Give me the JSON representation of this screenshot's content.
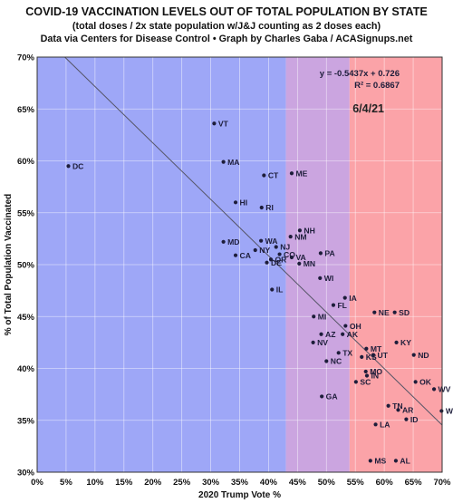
{
  "title": "COVID-19 VACCINATION LEVELS OUT OF TOTAL POPULATION BY STATE",
  "subtitle": "(total doses / 2x state population w/J&J counting as 2 doses each)",
  "credit": "Data via Centers for Disease Control • Graph by Charles Gaba / ACASignups.net",
  "colors": {
    "blue_region": "#9ea7f7",
    "purple_region": "#cba5e0",
    "red_region": "#fba3a8",
    "point": "#1d1d3a",
    "trendline": "#555566"
  },
  "chart_data": {
    "type": "scatter",
    "xlabel": "2020 Trump Vote %",
    "ylabel": "% of Total Population Vaccinated",
    "xlim": [
      0.0,
      0.7
    ],
    "ylim": [
      0.3,
      0.7
    ],
    "x_ticks": [
      "0%",
      "5%",
      "10%",
      "15%",
      "20%",
      "25%",
      "30%",
      "35%",
      "40%",
      "45%",
      "50%",
      "55%",
      "60%",
      "65%",
      "70%"
    ],
    "y_ticks": [
      "30%",
      "35%",
      "40%",
      "45%",
      "50%",
      "55%",
      "60%",
      "65%",
      "70%"
    ],
    "grid": true,
    "bands": [
      {
        "from": 0.0,
        "to": 0.43,
        "color": "#9ea7f7"
      },
      {
        "from": 0.43,
        "to": 0.54,
        "color": "#cba5e0"
      },
      {
        "from": 0.54,
        "to": 0.7,
        "color": "#fba3a8"
      }
    ],
    "trendline": {
      "slope": -0.5437,
      "intercept": 0.726
    },
    "equation": "y = -0.5437x + 0.726",
    "r_squared": "R² = 0.6867",
    "date": "6/4/21",
    "points": [
      {
        "label": "DC",
        "x": 0.054,
        "y": 0.595
      },
      {
        "label": "VT",
        "x": 0.306,
        "y": 0.636
      },
      {
        "label": "MA",
        "x": 0.322,
        "y": 0.599
      },
      {
        "label": "CT",
        "x": 0.392,
        "y": 0.586
      },
      {
        "label": "ME",
        "x": 0.44,
        "y": 0.588
      },
      {
        "label": "HI",
        "x": 0.343,
        "y": 0.56
      },
      {
        "label": "RI",
        "x": 0.388,
        "y": 0.555
      },
      {
        "label": "NH",
        "x": 0.454,
        "y": 0.533
      },
      {
        "label": "NM",
        "x": 0.438,
        "y": 0.527
      },
      {
        "label": "MD",
        "x": 0.322,
        "y": 0.522
      },
      {
        "label": "WA",
        "x": 0.387,
        "y": 0.523
      },
      {
        "label": "NJ",
        "x": 0.413,
        "y": 0.517
      },
      {
        "label": "NY",
        "x": 0.377,
        "y": 0.514
      },
      {
        "label": "CA",
        "x": 0.343,
        "y": 0.509
      },
      {
        "label": "CO",
        "x": 0.419,
        "y": 0.51
      },
      {
        "label": "VA",
        "x": 0.44,
        "y": 0.507
      },
      {
        "label": "PA",
        "x": 0.49,
        "y": 0.511
      },
      {
        "label": "OR",
        "x": 0.404,
        "y": 0.505
      },
      {
        "label": "DE",
        "x": 0.397,
        "y": 0.502
      },
      {
        "label": "MN",
        "x": 0.453,
        "y": 0.501
      },
      {
        "label": "WI",
        "x": 0.489,
        "y": 0.487
      },
      {
        "label": "IL",
        "x": 0.406,
        "y": 0.476
      },
      {
        "label": "IA",
        "x": 0.532,
        "y": 0.468
      },
      {
        "label": "FL",
        "x": 0.512,
        "y": 0.461
      },
      {
        "label": "NE",
        "x": 0.583,
        "y": 0.454
      },
      {
        "label": "SD",
        "x": 0.618,
        "y": 0.454
      },
      {
        "label": "MI",
        "x": 0.478,
        "y": 0.45
      },
      {
        "label": "OH",
        "x": 0.533,
        "y": 0.441
      },
      {
        "label": "AZ",
        "x": 0.491,
        "y": 0.433
      },
      {
        "label": "AK",
        "x": 0.528,
        "y": 0.433
      },
      {
        "label": "NV",
        "x": 0.477,
        "y": 0.425
      },
      {
        "label": "KY",
        "x": 0.621,
        "y": 0.425
      },
      {
        "label": "MT",
        "x": 0.569,
        "y": 0.419
      },
      {
        "label": "TX",
        "x": 0.521,
        "y": 0.415
      },
      {
        "label": "UT",
        "x": 0.581,
        "y": 0.413
      },
      {
        "label": "KS",
        "x": 0.561,
        "y": 0.411
      },
      {
        "label": "ND",
        "x": 0.651,
        "y": 0.413
      },
      {
        "label": "NC",
        "x": 0.5,
        "y": 0.407
      },
      {
        "label": "MO",
        "x": 0.568,
        "y": 0.397
      },
      {
        "label": "IN",
        "x": 0.57,
        "y": 0.393
      },
      {
        "label": "SC",
        "x": 0.551,
        "y": 0.387
      },
      {
        "label": "OK",
        "x": 0.654,
        "y": 0.387
      },
      {
        "label": "WV",
        "x": 0.686,
        "y": 0.38
      },
      {
        "label": "GA",
        "x": 0.492,
        "y": 0.373
      },
      {
        "label": "TN",
        "x": 0.607,
        "y": 0.364
      },
      {
        "label": "AR",
        "x": 0.624,
        "y": 0.36
      },
      {
        "label": "WY",
        "x": 0.699,
        "y": 0.359
      },
      {
        "label": "ID",
        "x": 0.638,
        "y": 0.351
      },
      {
        "label": "LA",
        "x": 0.585,
        "y": 0.346
      },
      {
        "label": "MS",
        "x": 0.576,
        "y": 0.311
      },
      {
        "label": "AL",
        "x": 0.62,
        "y": 0.311
      }
    ]
  }
}
